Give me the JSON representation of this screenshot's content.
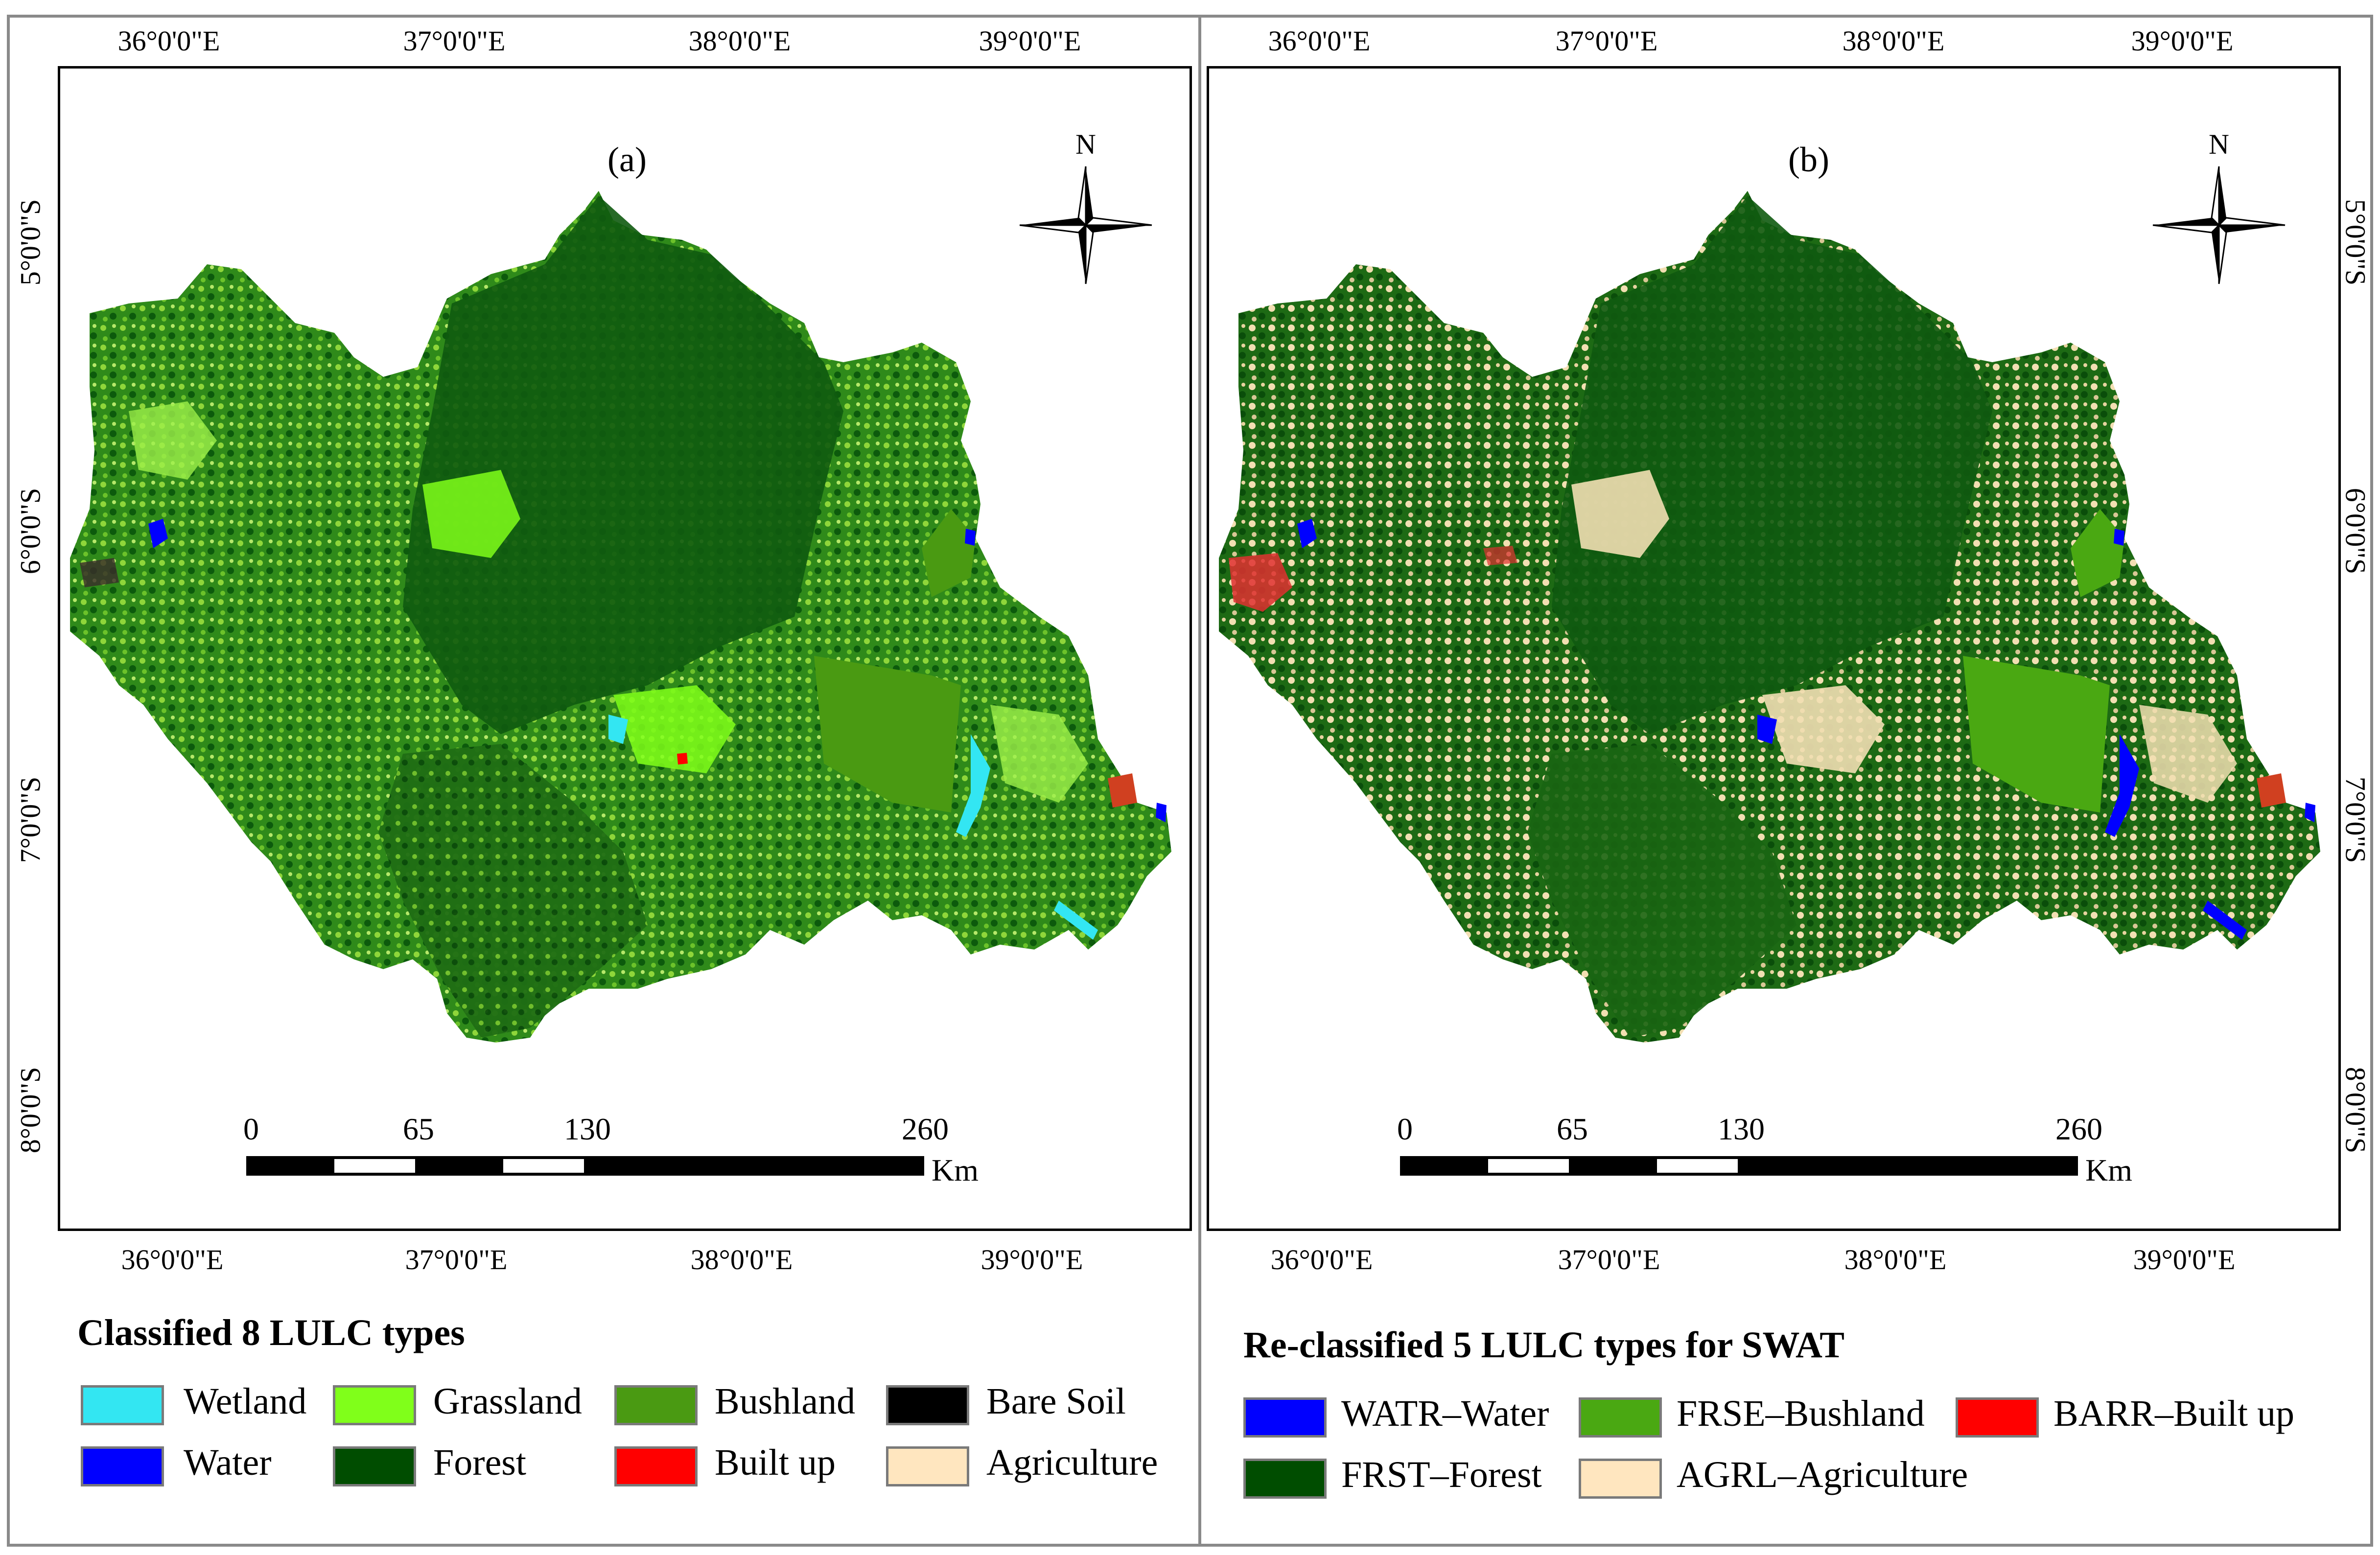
{
  "panels": [
    {
      "id": "a",
      "label": "(a)",
      "lon_labels": [
        "36°0'0\"E",
        "37°0'0\"E",
        "38°0'0\"E",
        "39°0'0\"E"
      ],
      "lat_labels": [
        "5°0'0\"S",
        "6°0'0\"S",
        "7°0'0\"S",
        "8°0'0\"S"
      ],
      "north_label": "N",
      "scale": {
        "ticks": [
          "0",
          "65",
          "130",
          "260"
        ],
        "unit": "Km"
      },
      "legend_title": "Classified 8 LULC types",
      "legend": [
        {
          "label": "Wetland",
          "color": "#33e6f2"
        },
        {
          "label": "Grassland",
          "color": "#80ff1a"
        },
        {
          "label": "Bushland",
          "color": "#4a9a12"
        },
        {
          "label": "Bare Soil",
          "color": "#000000"
        },
        {
          "label": "Water",
          "color": "#0000ff"
        },
        {
          "label": "Forest",
          "color": "#004d00"
        },
        {
          "label": "Built up",
          "color": "#ff0000"
        },
        {
          "label": "Agriculture",
          "color": "#ffe6bf"
        }
      ]
    },
    {
      "id": "b",
      "label": "(b)",
      "lon_labels": [
        "36°0'0\"E",
        "37°0'0\"E",
        "38°0'0\"E",
        "39°0'0\"E"
      ],
      "lat_labels": [
        "5°0'0\"S",
        "6°0'0\"S",
        "7°0'0\"S",
        "8°0'0\"S"
      ],
      "north_label": "N",
      "scale": {
        "ticks": [
          "0",
          "65",
          "130",
          "260"
        ],
        "unit": "Km"
      },
      "legend_title": "Re-classified 5 LULC types for SWAT",
      "legend": [
        {
          "label": "WATR–Water",
          "color": "#0000ff"
        },
        {
          "label": "FRSE–Bushland",
          "color": "#4aa812"
        },
        {
          "label": "BARR–Built up",
          "color": "#ff0000"
        },
        {
          "label": "FRST–Forest",
          "color": "#004d00"
        },
        {
          "label": "AGRL–Agriculture",
          "color": "#ffe6bf"
        }
      ]
    }
  ]
}
